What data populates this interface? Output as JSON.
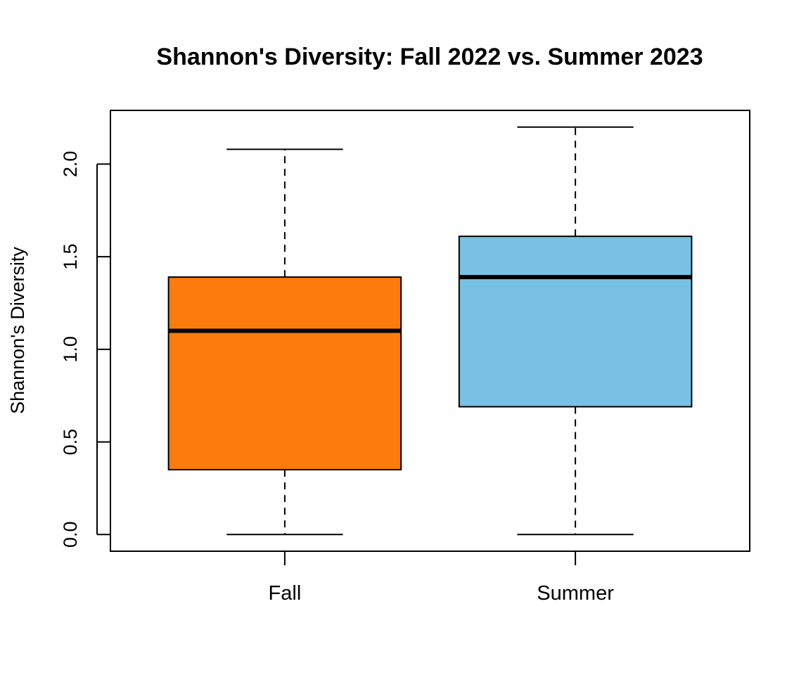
{
  "chart_data": {
    "type": "boxplot",
    "title": "Shannon's Diversity: Fall 2022 vs. Summer 2023",
    "xlabel": "",
    "ylabel": "Shannon's Diversity",
    "categories": [
      "Fall",
      "Summer"
    ],
    "ylim": [
      -0.09,
      2.29
    ],
    "yticks": [
      0.0,
      0.5,
      1.0,
      1.5,
      2.0
    ],
    "ytick_labels": [
      "0.0",
      "0.5",
      "1.0",
      "1.5",
      "2.0"
    ],
    "grid": false,
    "legend": "none",
    "boxes": [
      {
        "category": "Fall",
        "min": 0.0,
        "q1": 0.35,
        "median": 1.1,
        "q3": 1.39,
        "max": 2.08,
        "color": "#fc7b0c"
      },
      {
        "category": "Summer",
        "min": 0.0,
        "q1": 0.69,
        "median": 1.39,
        "q3": 1.61,
        "max": 2.2,
        "color": "#79c1e4"
      }
    ]
  }
}
